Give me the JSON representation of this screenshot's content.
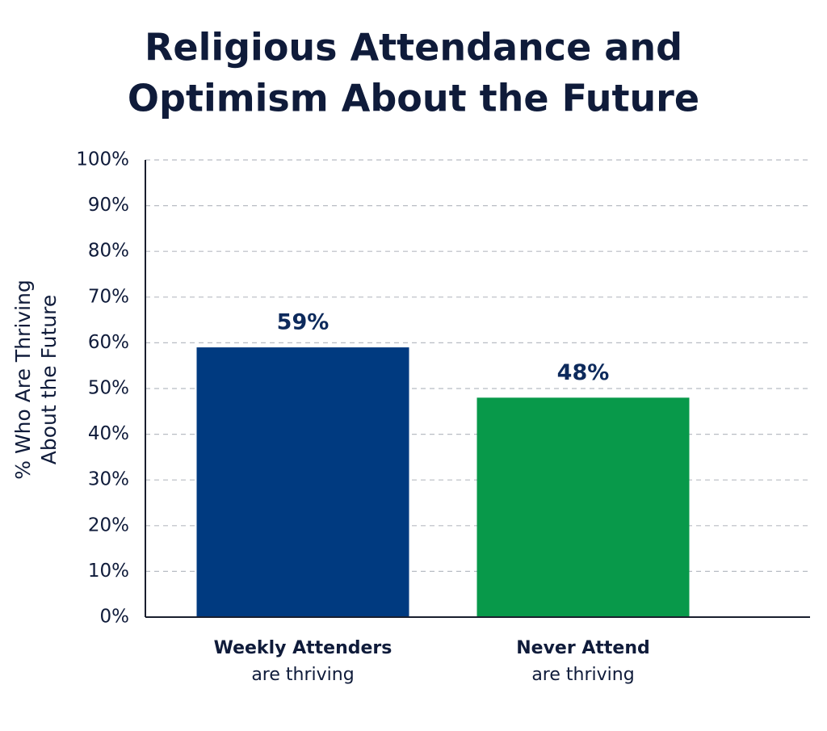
{
  "chart_data": {
    "type": "bar",
    "title": [
      "Religious Attendance and",
      "Optimism About the Future"
    ],
    "y_label": [
      "% Who Are Thriving",
      "About the Future"
    ],
    "categories": [
      [
        "Weekly Attenders",
        "are thriving"
      ],
      [
        "Never Attend",
        "are thriving"
      ]
    ],
    "values": [
      59,
      48
    ],
    "value_labels": [
      "59%",
      "48%"
    ],
    "colors": [
      "#003a80",
      "#08994a"
    ],
    "ylim": [
      0,
      100
    ],
    "yticks": [
      {
        "value": 0,
        "label": "0%"
      },
      {
        "value": 10,
        "label": "10%"
      },
      {
        "value": 20,
        "label": "20%"
      },
      {
        "value": 30,
        "label": "30%"
      },
      {
        "value": 40,
        "label": "40%"
      },
      {
        "value": 50,
        "label": "50%"
      },
      {
        "value": 60,
        "label": "60%"
      },
      {
        "value": 70,
        "label": "70%"
      },
      {
        "value": 80,
        "label": "80%"
      },
      {
        "value": 90,
        "label": "90%"
      },
      {
        "value": 100,
        "label": "100%"
      }
    ],
    "grid": true
  }
}
